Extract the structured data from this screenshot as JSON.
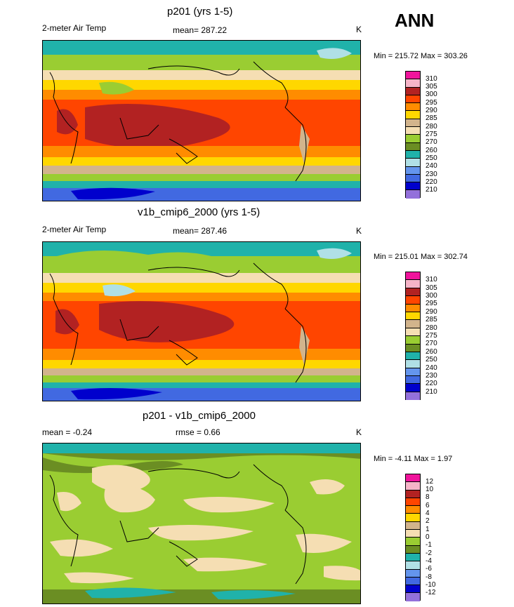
{
  "season": "ANN",
  "panels": [
    {
      "title": "p201 (yrs 1-5)",
      "left_label": "2-meter Air Temp",
      "mean_label": "mean= 287.22",
      "units": "K",
      "minmax": "Min = 215.72 Max = 303.26",
      "levels": [
        "310",
        "305",
        "300",
        "295",
        "290",
        "285",
        "280",
        "275",
        "270",
        "260",
        "250",
        "240",
        "230",
        "220",
        "210"
      ],
      "colors": [
        "#f0149c",
        "#f6b4c8",
        "#b22222",
        "#ff4500",
        "#ff8c00",
        "#ffd700",
        "#d2b48c",
        "#f5deb3",
        "#9acd32",
        "#6b8e23",
        "#20b2aa",
        "#b0e0e6",
        "#6495ed",
        "#4169e1",
        "#0000cd",
        "#9370db"
      ]
    },
    {
      "title": "v1b_cmip6_2000 (yrs 1-5)",
      "left_label": "2-meter Air Temp",
      "mean_label": "mean= 287.46",
      "units": "K",
      "minmax": "Min = 215.01 Max = 302.74",
      "levels": [
        "310",
        "305",
        "300",
        "295",
        "290",
        "285",
        "280",
        "275",
        "270",
        "260",
        "250",
        "240",
        "230",
        "220",
        "210"
      ],
      "colors": [
        "#f0149c",
        "#f6b4c8",
        "#b22222",
        "#ff4500",
        "#ff8c00",
        "#ffd700",
        "#d2b48c",
        "#f5deb3",
        "#9acd32",
        "#6b8e23",
        "#20b2aa",
        "#b0e0e6",
        "#6495ed",
        "#4169e1",
        "#0000cd",
        "#9370db"
      ]
    },
    {
      "title": "p201 - v1b_cmip6_2000",
      "left_label": "mean =  -0.24",
      "mean_label": "rmse =   0.66",
      "units": "K",
      "minmax": "Min =  -4.11 Max =   1.97",
      "levels": [
        "12",
        "10",
        "8",
        "6",
        "4",
        "2",
        "1",
        "0",
        "-1",
        "-2",
        "-4",
        "-6",
        "-8",
        "-10",
        "-12"
      ],
      "colors": [
        "#f0149c",
        "#f6b4c8",
        "#b22222",
        "#ff4500",
        "#ff8c00",
        "#ffd700",
        "#d2b48c",
        "#f5deb3",
        "#9acd32",
        "#6b8e23",
        "#20b2aa",
        "#b0e0e6",
        "#6495ed",
        "#4169e1",
        "#0000cd",
        "#9370db"
      ]
    }
  ]
}
